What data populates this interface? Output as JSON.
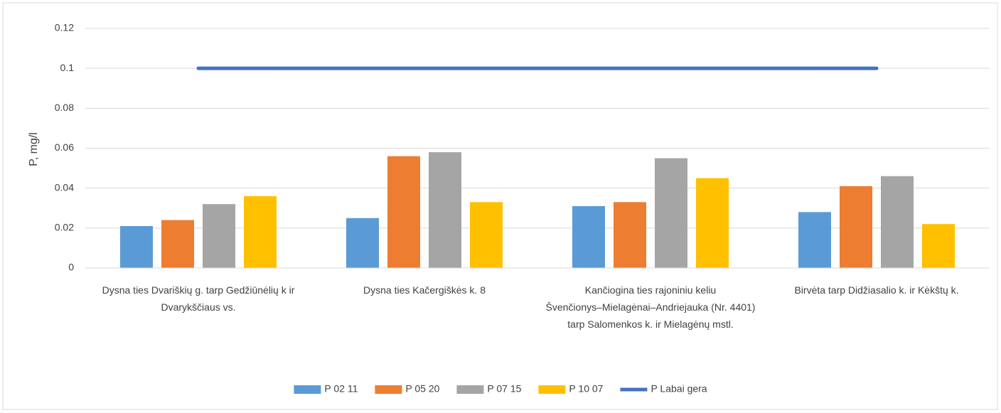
{
  "chart_data": {
    "type": "bar",
    "ylabel": "P, mg/l",
    "categories": [
      "Dysna ties Dvariškių g. tarp Gedžiūnėlių k ir Dvarykščiaus vs.",
      "Dysna ties Kačergiškės k. 8",
      "Kančiogina ties rajoniniu keliu Švenčionys–Mielagėnai–Andriejauka (Nr. 4401) tarp Salomenkos k. ir Mielagėnų mstl.",
      "Birvėta tarp Didžiasalio k. ir Kėkštų k."
    ],
    "series": [
      {
        "name": "P 02 11",
        "color": "#5b9bd5",
        "values": [
          0.021,
          0.025,
          0.031,
          0.028
        ]
      },
      {
        "name": "P 05 20",
        "color": "#ed7d31",
        "values": [
          0.024,
          0.056,
          0.033,
          0.041
        ]
      },
      {
        "name": "P 07 15",
        "color": "#a5a5a5",
        "values": [
          0.032,
          0.058,
          0.055,
          0.046
        ]
      },
      {
        "name": "P 10 07",
        "color": "#ffc000",
        "values": [
          0.036,
          0.033,
          0.045,
          0.022
        ]
      },
      {
        "name": "P Labai gera",
        "color": "#4472c4",
        "type": "line",
        "values": [
          0.1,
          0.1,
          0.1,
          0.1
        ]
      }
    ],
    "ylim": [
      0,
      0.12
    ],
    "yticks": [
      0,
      0.02,
      0.04,
      0.06,
      0.08,
      0.1,
      0.12
    ],
    "grid": true,
    "legend": "bottom"
  }
}
